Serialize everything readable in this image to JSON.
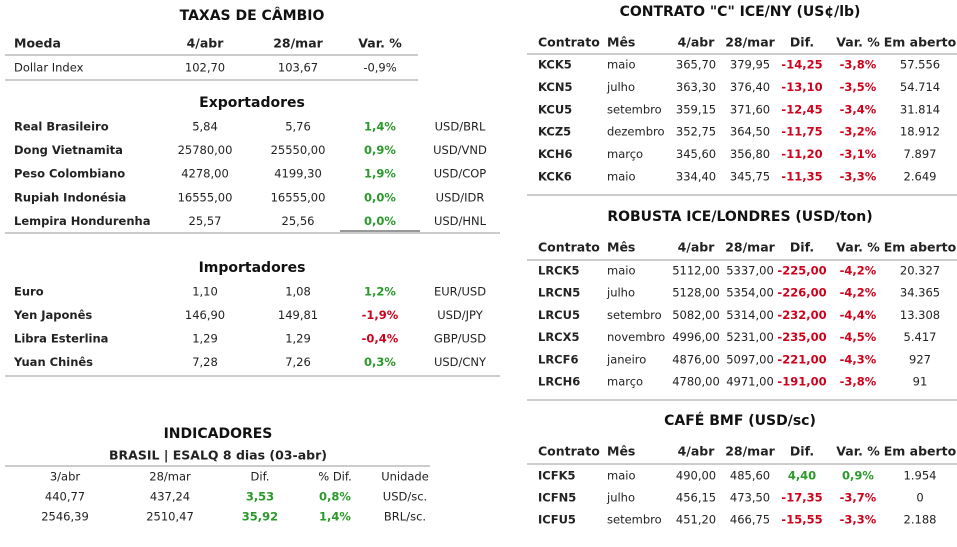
{
  "taxas": {
    "title": "TAXAS DE CÂMBIO",
    "header": [
      "Moeda",
      "4/abr",
      "28/mar",
      "Var. %"
    ],
    "rows": [
      [
        "Dollar Index",
        "102,70",
        "103,67",
        "-0,9%"
      ]
    ]
  },
  "exportadores": {
    "title": "Exportadores",
    "rows": [
      [
        "Real Brasileiro",
        "5,84",
        "5,76",
        "1,4%",
        "USD/BRL"
      ],
      [
        "Dong Vietnamita",
        "25780,00",
        "25550,00",
        "0,9%",
        "USD/VND"
      ],
      [
        "Peso Colombiano",
        "4278,00",
        "4199,30",
        "1,9%",
        "USD/COP"
      ],
      [
        "Rupiah Indonésia",
        "16555,00",
        "16555,00",
        "0,0%",
        "USD/IDR"
      ],
      [
        "Lempira Hondurenha",
        "25,57",
        "25,56",
        "0,0%",
        "USD/HNL"
      ]
    ]
  },
  "importadores": {
    "title": "Importadores",
    "rows": [
      [
        "Euro",
        "1,10",
        "1,08",
        "1,2%",
        "EUR/USD"
      ],
      [
        "Yen Japonês",
        "146,90",
        "149,81",
        "-1,9%",
        "USD/JPY"
      ],
      [
        "Libra Esterlina",
        "1,29",
        "1,29",
        "-0,4%",
        "GBP/USD"
      ],
      [
        "Yuan Chinês",
        "7,28",
        "7,26",
        "0,3%",
        "USD/CNY"
      ]
    ]
  },
  "indicadores": {
    "title": "INDICADORES",
    "subtitle": "BRASIL | ESALQ 8 dias (03-abr)",
    "header": [
      "3/abr",
      "28/mar",
      "Dif.",
      "% Dif.",
      "Unidade"
    ],
    "rows": [
      [
        "440,77",
        "437,24",
        "3,53",
        "0,8%",
        "USD/sc."
      ],
      [
        "2546,39",
        "2510,47",
        "35,92",
        "1,4%",
        "BRL/sc."
      ]
    ]
  },
  "ice_ny": {
    "title": "CONTRATO \"C\" ICE/NY (US¢/lb)",
    "header": [
      "Contrato",
      "Mês",
      "4/abr",
      "28/mar",
      "Dif.",
      "Var. %",
      "Em aberto"
    ],
    "rows": [
      [
        "KCK5",
        "maio",
        "365,70",
        "379,95",
        "-14,25",
        "-3,8%",
        "57.556"
      ],
      [
        "KCN5",
        "julho",
        "363,30",
        "376,40",
        "-13,10",
        "-3,5%",
        "54.714"
      ],
      [
        "KCU5",
        "setembro",
        "359,15",
        "371,60",
        "-12,45",
        "-3,4%",
        "31.814"
      ],
      [
        "KCZ5",
        "dezembro",
        "352,75",
        "364,50",
        "-11,75",
        "-3,2%",
        "18.912"
      ],
      [
        "KCH6",
        "março",
        "345,60",
        "356,80",
        "-11,20",
        "-3,1%",
        "7.897"
      ],
      [
        "KCK6",
        "maio",
        "334,40",
        "345,75",
        "-11,35",
        "-3,3%",
        "2.649"
      ]
    ]
  },
  "robusta": {
    "title": "ROBUSTA ICE/LONDRES (USD/ton)",
    "header": [
      "Contrato",
      "Mês",
      "4/abr",
      "28/mar",
      "Dif.",
      "Var. %",
      "Em aberto"
    ],
    "rows": [
      [
        "LRCK5",
        "maio",
        "5112,00",
        "5337,00",
        "-225,00",
        "-4,2%",
        "20.327"
      ],
      [
        "LRCN5",
        "julho",
        "5128,00",
        "5354,00",
        "-226,00",
        "-4,2%",
        "34.365"
      ],
      [
        "LRCU5",
        "setembro",
        "5082,00",
        "5314,00",
        "-232,00",
        "-4,4%",
        "13.308"
      ],
      [
        "LRCX5",
        "novembro",
        "4996,00",
        "5231,00",
        "-235,00",
        "-4,5%",
        "5.417"
      ],
      [
        "LRCF6",
        "janeiro",
        "4876,00",
        "5097,00",
        "-221,00",
        "-4,3%",
        "927"
      ],
      [
        "LRCH6",
        "março",
        "4780,00",
        "4971,00",
        "-191,00",
        "-3,8%",
        "91"
      ]
    ]
  },
  "bmf": {
    "title": "CAFÉ BMF (USD/sc)",
    "header": [
      "Contrato",
      "Mês",
      "4/abr",
      "28/mar",
      "Dif.",
      "Var. %",
      "Em aberto"
    ],
    "rows": [
      [
        "ICFK5",
        "maio",
        "490,00",
        "485,60",
        "4,40",
        "0,9%",
        "1.954"
      ],
      [
        "ICFN5",
        "julho",
        "456,15",
        "473,50",
        "-17,35",
        "-3,7%",
        "0"
      ],
      [
        "ICFU5",
        "setembro",
        "451,20",
        "466,75",
        "-15,55",
        "-3,3%",
        "2.188"
      ]
    ]
  }
}
